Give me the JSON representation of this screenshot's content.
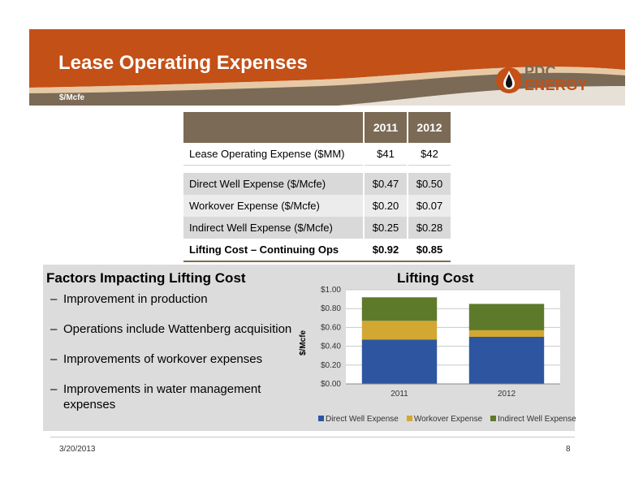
{
  "header": {
    "title": "Lease Operating Expenses",
    "subtitle": "$/Mcfe",
    "logo_text_top": "PDC",
    "logo_text_bottom": "ENERGY",
    "colors": {
      "banner": "#c35017",
      "accent": "#7b6a55"
    }
  },
  "table": {
    "years": [
      "2011",
      "2012"
    ],
    "rows": [
      {
        "label": "Lease Operating Expense ($MM)",
        "v2011": "$41",
        "v2012": "$42"
      },
      {
        "label": "Direct Well Expense ($/Mcfe)",
        "v2011": "$0.47",
        "v2012": "$0.50"
      },
      {
        "label": "Workover Expense ($/Mcfe)",
        "v2011": "$0.20",
        "v2012": "$0.07"
      },
      {
        "label": "Indirect Well Expense ($/Mcfe)",
        "v2011": "$0.25",
        "v2012": "$0.28"
      },
      {
        "label": "Lifting Cost – Continuing Ops",
        "v2011": "$0.92",
        "v2012": "$0.85"
      }
    ]
  },
  "factors": {
    "title": "Factors Impacting Lifting Cost",
    "dash": "–",
    "items": [
      "Improvement in production",
      "Operations include Wattenberg acquisition",
      "Improvements of workover expenses",
      "Improvements in water management expenses"
    ]
  },
  "chart_data": {
    "type": "bar",
    "stacked": true,
    "title": "Lifting Cost",
    "ylabel": "$/Mcfe",
    "xlabel": "",
    "categories": [
      "2011",
      "2012"
    ],
    "ylim": [
      0,
      1.0
    ],
    "yticks": [
      "$0.00",
      "$0.20",
      "$0.40",
      "$0.60",
      "$0.80",
      "$1.00"
    ],
    "series": [
      {
        "name": "Direct Well Expense",
        "values": [
          0.47,
          0.5
        ],
        "color": "#2e56a0"
      },
      {
        "name": "Workover Expense",
        "values": [
          0.2,
          0.07
        ],
        "color": "#d2a732"
      },
      {
        "name": "Indirect Well Expense",
        "values": [
          0.25,
          0.28
        ],
        "color": "#5d7a2b"
      }
    ],
    "grid": true,
    "legend": "bottom"
  },
  "footer": {
    "date": "3/20/2013",
    "page": "8"
  }
}
